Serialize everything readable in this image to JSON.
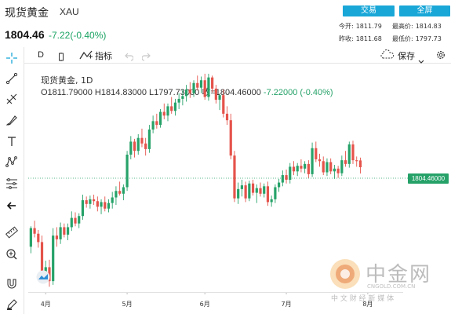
{
  "header": {
    "title": "现货黄金",
    "symbol": "XAU",
    "price": "1804.46",
    "change": "-7.22(-0.40%)",
    "trade_button": "交易",
    "fullscreen_button": "全屏",
    "stats": {
      "open_label": "今开:",
      "open_value": "1811.79",
      "high_label": "最高价:",
      "high_value": "1814.83",
      "prev_close_label": "昨收:",
      "prev_close_value": "1811.68",
      "low_label": "最低价:",
      "low_value": "1797.73"
    }
  },
  "toolbar": {
    "interval": "D",
    "indicators_label": "指标",
    "save_label": "保存"
  },
  "left_tools": [
    "crosshair-icon",
    "trend-line-icon",
    "pitchfork-icon",
    "brush-icon",
    "text-tool-icon",
    "pattern-icon",
    "fib-icon",
    "back-arrow-icon",
    "ruler-icon",
    "zoom-in-icon",
    "magnet-icon",
    "lock-pencil-icon",
    "trash-icon"
  ],
  "legend": {
    "name": "现货黄金, 1D",
    "ohlc": "O1811.79000 H1814.83000 L1797.73000 收=1804.46000",
    "change": "-7.22000 (-0.40%)"
  },
  "last_price_label": "1804.46000",
  "watermark": {
    "text": "中金网",
    "domain": "CNGOLD.COM.CN",
    "tagline": "中 文 财 经 新 媒 体"
  },
  "colors": {
    "up": "#26a269",
    "down": "#e5534b",
    "accent": "#19a7d8"
  },
  "chart_data": {
    "type": "candlestick",
    "x_ticks": [
      {
        "label": "4月",
        "index": 4
      },
      {
        "label": "5月",
        "index": 26
      },
      {
        "label": "6月",
        "index": 47
      },
      {
        "label": "7月",
        "index": 69
      },
      {
        "label": "8月",
        "index": 91
      }
    ],
    "last_price": 1804.46,
    "candles": [
      [
        1719,
        1741,
        1712,
        1739
      ],
      [
        1739,
        1747,
        1729,
        1733
      ],
      [
        1733,
        1737,
        1718,
        1724
      ],
      [
        1724,
        1731,
        1681,
        1690
      ],
      [
        1690,
        1704,
        1683,
        1697
      ],
      [
        1697,
        1705,
        1676,
        1682
      ],
      [
        1682,
        1739,
        1678,
        1731
      ],
      [
        1731,
        1740,
        1719,
        1727
      ],
      [
        1727,
        1745,
        1722,
        1740
      ],
      [
        1740,
        1744,
        1729,
        1732
      ],
      [
        1732,
        1744,
        1726,
        1740
      ],
      [
        1740,
        1757,
        1736,
        1750
      ],
      [
        1750,
        1756,
        1741,
        1744
      ],
      [
        1744,
        1755,
        1739,
        1752
      ],
      [
        1752,
        1775,
        1748,
        1769
      ],
      [
        1769,
        1773,
        1761,
        1765
      ],
      [
        1765,
        1774,
        1760,
        1770
      ],
      [
        1770,
        1775,
        1764,
        1768
      ],
      [
        1768,
        1773,
        1757,
        1762
      ],
      [
        1762,
        1770,
        1754,
        1767
      ],
      [
        1767,
        1773,
        1757,
        1760
      ],
      [
        1760,
        1770,
        1756,
        1766
      ],
      [
        1766,
        1778,
        1760,
        1772
      ],
      [
        1772,
        1784,
        1764,
        1779
      ],
      [
        1779,
        1789,
        1774,
        1776
      ],
      [
        1776,
        1786,
        1769,
        1783
      ],
      [
        1783,
        1822,
        1779,
        1818
      ],
      [
        1818,
        1838,
        1813,
        1832
      ],
      [
        1832,
        1835,
        1815,
        1822
      ],
      [
        1822,
        1840,
        1818,
        1836
      ],
      [
        1836,
        1846,
        1826,
        1830
      ],
      [
        1830,
        1836,
        1817,
        1824
      ],
      [
        1824,
        1850,
        1820,
        1845
      ],
      [
        1845,
        1860,
        1841,
        1854
      ],
      [
        1854,
        1862,
        1846,
        1850
      ],
      [
        1850,
        1867,
        1847,
        1864
      ],
      [
        1864,
        1873,
        1856,
        1860
      ],
      [
        1860,
        1873,
        1854,
        1870
      ],
      [
        1870,
        1880,
        1862,
        1865
      ],
      [
        1865,
        1878,
        1860,
        1874
      ],
      [
        1874,
        1884,
        1867,
        1878
      ],
      [
        1878,
        1888,
        1871,
        1881
      ],
      [
        1881,
        1893,
        1875,
        1888
      ],
      [
        1888,
        1896,
        1879,
        1884
      ],
      [
        1884,
        1898,
        1880,
        1895
      ],
      [
        1895,
        1903,
        1887,
        1890
      ],
      [
        1890,
        1902,
        1884,
        1898
      ],
      [
        1898,
        1905,
        1877,
        1880
      ],
      [
        1880,
        1905,
        1876,
        1901
      ],
      [
        1901,
        1903,
        1885,
        1889
      ],
      [
        1889,
        1893,
        1873,
        1877
      ],
      [
        1877,
        1884,
        1866,
        1882
      ],
      [
        1882,
        1888,
        1858,
        1862
      ],
      [
        1862,
        1870,
        1850,
        1855
      ],
      [
        1855,
        1862,
        1813,
        1817
      ],
      [
        1817,
        1822,
        1767,
        1771
      ],
      [
        1771,
        1788,
        1765,
        1781
      ],
      [
        1781,
        1791,
        1773,
        1785
      ],
      [
        1785,
        1789,
        1767,
        1771
      ],
      [
        1771,
        1790,
        1768,
        1787
      ],
      [
        1787,
        1791,
        1774,
        1777
      ],
      [
        1777,
        1786,
        1766,
        1782
      ],
      [
        1782,
        1788,
        1773,
        1776
      ],
      [
        1776,
        1787,
        1772,
        1784
      ],
      [
        1784,
        1789,
        1763,
        1767
      ],
      [
        1767,
        1774,
        1762,
        1770
      ],
      [
        1770,
        1786,
        1766,
        1783
      ],
      [
        1783,
        1792,
        1778,
        1788
      ],
      [
        1788,
        1801,
        1784,
        1796
      ],
      [
        1796,
        1802,
        1787,
        1791
      ],
      [
        1791,
        1809,
        1787,
        1805
      ],
      [
        1805,
        1811,
        1796,
        1800
      ],
      [
        1800,
        1809,
        1795,
        1806
      ],
      [
        1806,
        1813,
        1799,
        1803
      ],
      [
        1803,
        1811,
        1798,
        1808
      ],
      [
        1808,
        1812,
        1793,
        1797
      ],
      [
        1797,
        1831,
        1794,
        1825
      ],
      [
        1825,
        1832,
        1810,
        1813
      ],
      [
        1813,
        1819,
        1805,
        1811
      ],
      [
        1811,
        1816,
        1796,
        1799
      ],
      [
        1799,
        1814,
        1795,
        1810
      ],
      [
        1810,
        1814,
        1797,
        1800
      ],
      [
        1800,
        1807,
        1792,
        1803
      ],
      [
        1803,
        1806,
        1793,
        1798
      ],
      [
        1798,
        1817,
        1795,
        1812
      ],
      [
        1812,
        1822,
        1805,
        1808
      ],
      [
        1808,
        1832,
        1804,
        1829
      ],
      [
        1829,
        1833,
        1808,
        1812
      ],
      [
        1812,
        1816,
        1805,
        1811
      ],
      [
        1811.79,
        1814.83,
        1797.73,
        1804.46
      ]
    ],
    "ylim": [
      1672,
      1910
    ]
  }
}
